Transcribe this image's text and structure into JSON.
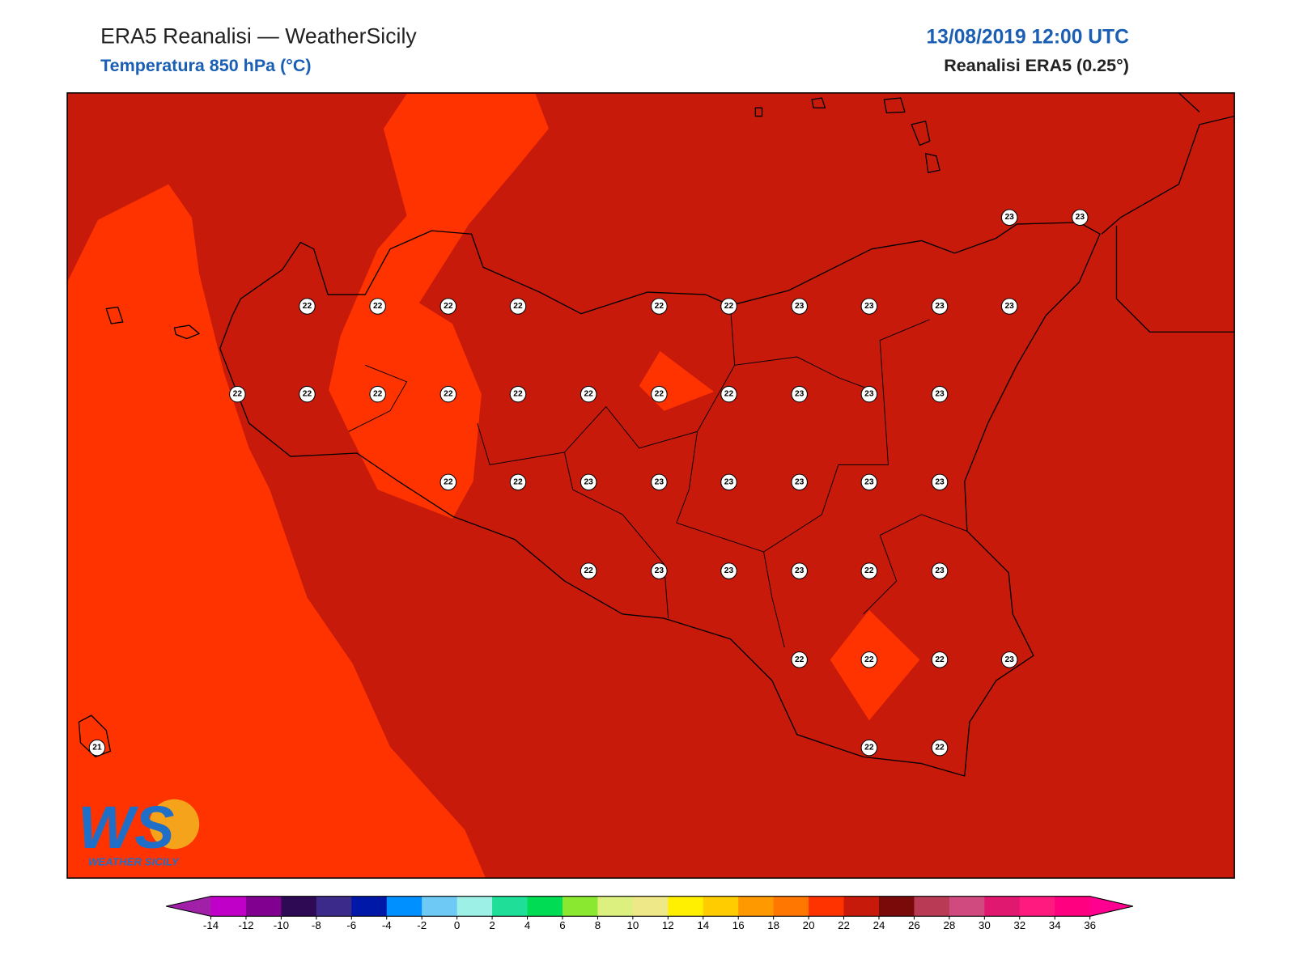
{
  "header": {
    "title": "ERA5 Reanalisi — WeatherSicily",
    "subtitle": "Temperatura 850 hPa (°C)",
    "datetime": "13/08/2019 12:00 UTC",
    "source": "Reanalisi ERA5 (0.25°)"
  },
  "map": {
    "field_color": "#c81a0b",
    "warm_patch_color": "#ff3300",
    "stations": [
      23,
      23,
      22,
      22,
      22,
      22,
      22,
      22,
      23,
      23,
      23,
      23,
      22,
      22,
      22,
      22,
      22,
      22,
      22,
      22,
      23,
      23,
      23,
      22,
      22,
      23,
      23,
      23,
      23,
      23,
      23,
      22,
      23,
      23,
      23,
      22,
      23,
      22,
      22,
      22,
      23,
      21,
      22,
      22
    ]
  },
  "logo": {
    "mark": "WS",
    "name": "WEATHER SICILY"
  },
  "colorbar": {
    "ticks": [
      -14,
      -12,
      -10,
      -8,
      -6,
      -4,
      -2,
      0,
      2,
      4,
      6,
      8,
      10,
      12,
      14,
      16,
      18,
      20,
      22,
      24,
      26,
      28,
      30,
      32,
      34,
      36
    ],
    "colors": [
      "#c000c8",
      "#820090",
      "#2e0a54",
      "#3c2a8a",
      "#0018a8",
      "#0090ff",
      "#6ec9f5",
      "#9cf0e6",
      "#1ede98",
      "#00dd55",
      "#8ae830",
      "#dcf080",
      "#eee888",
      "#ffef00",
      "#ffcc00",
      "#ff9900",
      "#ff7700",
      "#ff3300",
      "#c81a0b",
      "#7a0a0a",
      "#b83a55",
      "#d04a80",
      "#e01870",
      "#ff1a80",
      "#ff0080"
    ],
    "under": "#a020a8",
    "over": "#ff0090"
  }
}
